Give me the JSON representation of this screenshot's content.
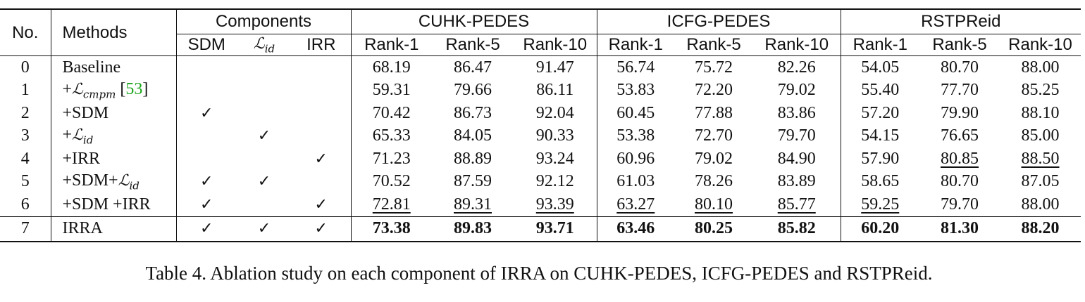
{
  "headers": {
    "no": "No.",
    "methods": "Methods",
    "components": "Components",
    "comp_sdm": "SDM",
    "comp_id_symbol": "ℒ",
    "comp_id_sub": "id",
    "comp_irr": "IRR",
    "datasets": [
      "CUHK-PEDES",
      "ICFG-PEDES",
      "RSTPReid"
    ],
    "metrics": [
      "Rank-1",
      "Rank-5",
      "Rank-10"
    ]
  },
  "check_mark": "✓",
  "rows": [
    {
      "no": "0",
      "method": {
        "pre": "Baseline"
      },
      "sdm": false,
      "lid": false,
      "irr": false,
      "values": [
        "68.19",
        "86.47",
        "91.47",
        "56.74",
        "75.72",
        "82.26",
        "54.05",
        "80.70",
        "88.00"
      ],
      "underline": []
    },
    {
      "no": "1",
      "method": {
        "pre": "+",
        "sym": "ℒ",
        "sub": "cmpm",
        "cite": "53"
      },
      "sdm": false,
      "lid": false,
      "irr": false,
      "values": [
        "59.31",
        "79.66",
        "86.11",
        "53.83",
        "72.20",
        "79.02",
        "55.40",
        "77.70",
        "85.25"
      ],
      "underline": []
    },
    {
      "no": "2",
      "method": {
        "pre": "+SDM"
      },
      "sdm": true,
      "lid": false,
      "irr": false,
      "values": [
        "70.42",
        "86.73",
        "92.04",
        "60.45",
        "77.88",
        "83.86",
        "57.20",
        "79.90",
        "88.10"
      ],
      "underline": []
    },
    {
      "no": "3",
      "method": {
        "pre": "+",
        "sym": "ℒ",
        "sub": "id"
      },
      "sdm": false,
      "lid": true,
      "irr": false,
      "values": [
        "65.33",
        "84.05",
        "90.33",
        "53.38",
        "72.70",
        "79.70",
        "54.15",
        "76.65",
        "85.00"
      ],
      "underline": []
    },
    {
      "no": "4",
      "method": {
        "pre": "+IRR"
      },
      "sdm": false,
      "lid": false,
      "irr": true,
      "values": [
        "71.23",
        "88.89",
        "93.24",
        "60.96",
        "79.02",
        "84.90",
        "57.90",
        "80.85",
        "88.50"
      ],
      "underline": [
        7,
        8
      ]
    },
    {
      "no": "5",
      "method": {
        "pre": "+SDM+",
        "sym": "ℒ",
        "sub": "id"
      },
      "sdm": true,
      "lid": true,
      "irr": false,
      "values": [
        "70.52",
        "87.59",
        "92.12",
        "61.03",
        "78.26",
        "83.89",
        "58.65",
        "80.70",
        "87.05"
      ],
      "underline": []
    },
    {
      "no": "6",
      "method": {
        "pre": "+SDM +IRR"
      },
      "sdm": true,
      "lid": false,
      "irr": true,
      "values": [
        "72.81",
        "89.31",
        "93.39",
        "63.27",
        "80.10",
        "85.77",
        "59.25",
        "79.70",
        "88.00"
      ],
      "underline": [
        0,
        1,
        2,
        3,
        4,
        5,
        6
      ]
    },
    {
      "no": "7",
      "method": {
        "pre": "IRRA"
      },
      "sdm": true,
      "lid": true,
      "irr": true,
      "values": [
        "73.38",
        "89.83",
        "93.71",
        "63.46",
        "80.25",
        "85.82",
        "60.20",
        "81.30",
        "88.20"
      ],
      "underline": []
    }
  ],
  "caption": "Table 4. Ablation study on each component of IRRA on CUHK-PEDES, ICFG-PEDES and RSTPReid."
}
